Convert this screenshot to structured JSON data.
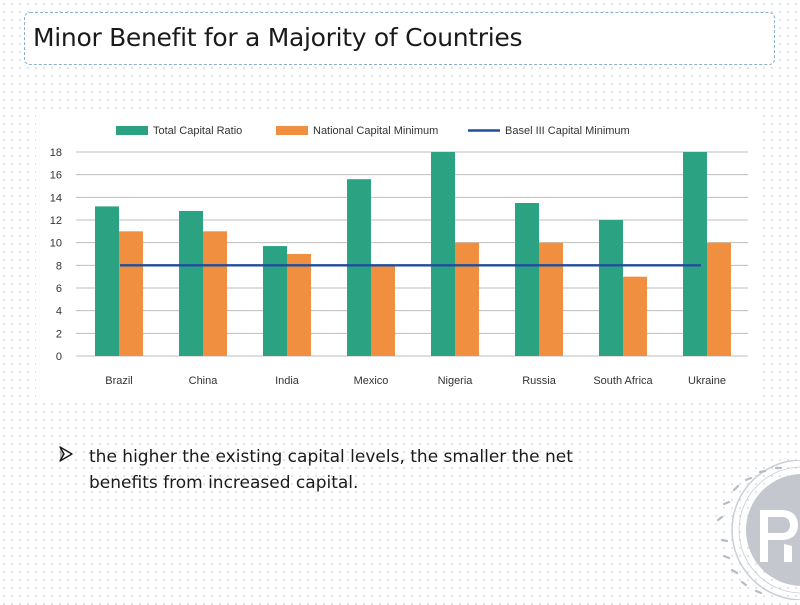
{
  "slide": {
    "title": "Minor Benefit for a Majority of Countries",
    "bullet_text": "the higher the existing capital levels, the smaller the net benefits from increased capital.",
    "bullet_icon": "arrow-bullet-icon",
    "logo_icon": "university-seal-icon"
  },
  "colors": {
    "total_capital_ratio": "#2ba383",
    "national_capital_minimum": "#f08f3f",
    "basel_iii": "#1f4e9c",
    "grid": "#bdbdbd"
  },
  "chart_data": {
    "type": "bar",
    "title": "",
    "xlabel": "",
    "ylabel": "",
    "categories": [
      "Brazil",
      "China",
      "India",
      "Mexico",
      "Nigeria",
      "Russia",
      "South Africa",
      "Ukraine"
    ],
    "series": [
      {
        "name": "Total Capital Ratio",
        "values": [
          13.2,
          12.8,
          9.7,
          15.6,
          18,
          13.5,
          12,
          18
        ]
      },
      {
        "name": "National Capital Minimum",
        "values": [
          11,
          11,
          9,
          8,
          10,
          10,
          7,
          10
        ]
      }
    ],
    "reference_line": {
      "name": "Basel III Capital Minimum",
      "value": 8
    },
    "ylim": [
      0,
      18
    ],
    "yticks": [
      0,
      2,
      4,
      6,
      8,
      10,
      12,
      14,
      16,
      18
    ],
    "grid": true,
    "legend_position": "top"
  }
}
